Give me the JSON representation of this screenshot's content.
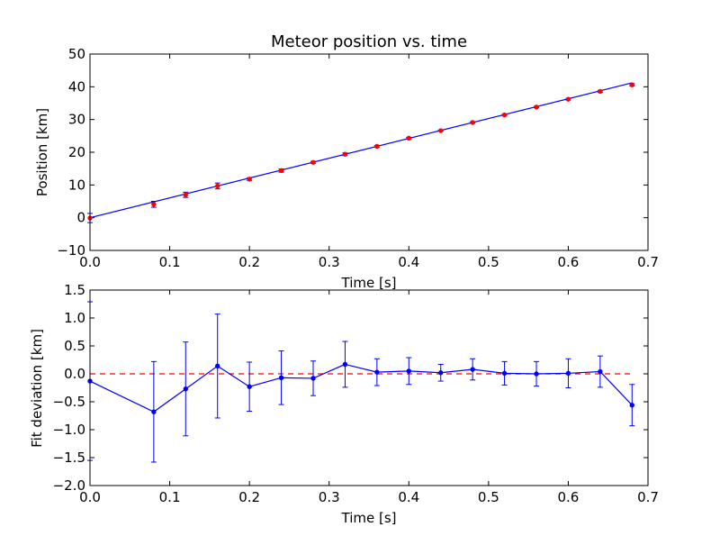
{
  "chart_data": [
    {
      "type": "scatter",
      "title": "Meteor position vs. time",
      "xlabel": "Time [s]",
      "ylabel": "Position [km]",
      "xlim": [
        0.0,
        0.7
      ],
      "ylim": [
        -10,
        50
      ],
      "xticks": [
        "0.0",
        "0.1",
        "0.2",
        "0.3",
        "0.4",
        "0.5",
        "0.6",
        "0.7"
      ],
      "yticks": [
        "−10",
        "0",
        "10",
        "20",
        "30",
        "40",
        "50"
      ],
      "grid": false,
      "colors": {
        "points": "#ff0000",
        "errorbars": "#0000ff",
        "fit": "#0000ff"
      },
      "series": [
        {
          "kind": "points_with_errorbars",
          "x": [
            0.0,
            0.08,
            0.12,
            0.16,
            0.2,
            0.24,
            0.28,
            0.32,
            0.36,
            0.4,
            0.44,
            0.48,
            0.52,
            0.56,
            0.6,
            0.64,
            0.68
          ],
          "y": [
            -0.1,
            4.1,
            7.0,
            9.7,
            11.8,
            14.4,
            16.9,
            19.4,
            21.8,
            24.3,
            26.6,
            29.1,
            31.4,
            33.8,
            36.2,
            38.6,
            40.6
          ],
          "yerr": [
            1.4,
            0.9,
            0.8,
            0.9,
            0.4,
            0.5,
            0.3,
            0.4,
            0.25,
            0.25,
            0.15,
            0.2,
            0.2,
            0.2,
            0.25,
            0.3,
            0.35
          ]
        },
        {
          "kind": "fit_line",
          "x": [
            0.0,
            0.68
          ],
          "y": [
            0.0,
            41.2
          ]
        }
      ]
    },
    {
      "type": "line",
      "xlabel": "Time [s]",
      "ylabel": "Fit deviation [km]",
      "xlim": [
        0.0,
        0.7
      ],
      "ylim": [
        -2.0,
        1.5
      ],
      "xticks": [
        "0.0",
        "0.1",
        "0.2",
        "0.3",
        "0.4",
        "0.5",
        "0.6",
        "0.7"
      ],
      "yticks": [
        "−2.0",
        "−1.5",
        "−1.0",
        "−0.5",
        "0.0",
        "0.5",
        "1.0",
        "1.5"
      ],
      "grid": false,
      "colors": {
        "line": "#0000ff",
        "zero_line": "#ff0000"
      },
      "reference_line_y": 0.0,
      "series": [
        {
          "kind": "line_with_errorbars",
          "x": [
            0.0,
            0.08,
            0.12,
            0.16,
            0.2,
            0.24,
            0.28,
            0.32,
            0.36,
            0.4,
            0.44,
            0.48,
            0.52,
            0.56,
            0.6,
            0.64,
            0.68
          ],
          "y": [
            -0.13,
            -0.68,
            -0.27,
            0.14,
            -0.23,
            -0.07,
            -0.08,
            0.17,
            0.03,
            0.05,
            0.02,
            0.08,
            0.01,
            0.0,
            0.01,
            0.04,
            -0.56
          ],
          "yerr": [
            1.42,
            0.9,
            0.84,
            0.93,
            0.44,
            0.48,
            0.31,
            0.41,
            0.24,
            0.24,
            0.15,
            0.19,
            0.21,
            0.22,
            0.26,
            0.28,
            0.37
          ]
        }
      ]
    }
  ]
}
